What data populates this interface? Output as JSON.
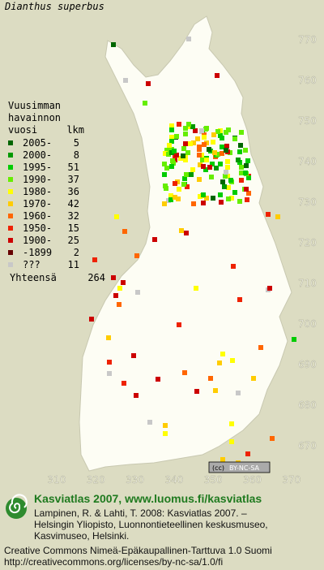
{
  "title": "Dianthus superbus",
  "axes": {
    "y_ticks": [
      770,
      760,
      750,
      740,
      730,
      720,
      710,
      700,
      690,
      680,
      670
    ],
    "x_ticks": [
      310,
      320,
      330,
      340,
      350,
      360,
      370
    ]
  },
  "legend": {
    "heading": [
      "Vuusimman",
      "havainnon",
      "vuosi"
    ],
    "count_heading": "lkm",
    "rows": [
      {
        "label": "2005-",
        "count": 5,
        "color": "#006600"
      },
      {
        "label": "2000-",
        "count": 8,
        "color": "#009900"
      },
      {
        "label": "1995-",
        "count": 51,
        "color": "#00cc00"
      },
      {
        "label": "1990-",
        "count": 37,
        "color": "#66ee00"
      },
      {
        "label": "1980-",
        "count": 36,
        "color": "#ffff00"
      },
      {
        "label": "1970-",
        "count": 42,
        "color": "#ffcc00"
      },
      {
        "label": "1960-",
        "count": 32,
        "color": "#ff6600"
      },
      {
        "label": "1950-",
        "count": 15,
        "color": "#ee2200"
      },
      {
        "label": "1900-",
        "count": 25,
        "color": "#cc0000"
      },
      {
        "label": "-1899",
        "count": 2,
        "color": "#660000"
      },
      {
        "label": "???",
        "count": 11,
        "color": "#c8c8c8"
      }
    ],
    "total_label": "Yhteensä",
    "total": 264
  },
  "footer": {
    "brand": "Kasviatlas 2007, www.luomus.fi/kasviatlas",
    "citation": [
      "Lampinen, R. & Lahti, T. 2008: Kasviatlas 2007. –",
      "Helsingin Yliopisto, Luonnontieteellinen keskusmuseo,",
      "Kasvimuseo, Helsinki."
    ],
    "license": [
      "Creative Commons Nimeä-Epäkaupallinen-Tarttuva 1.0 Suomi",
      "http://creativecommons.org/licenses/by-nc-sa/1.0/fi"
    ]
  },
  "badge": "BY-NC-SA"
}
